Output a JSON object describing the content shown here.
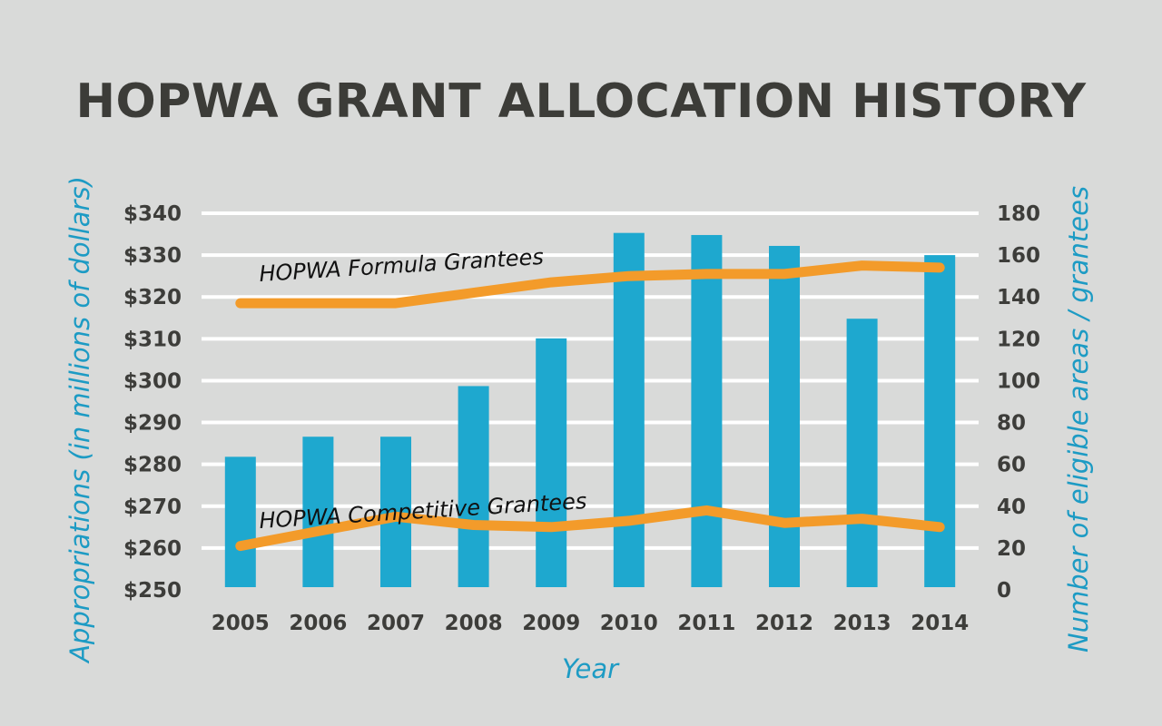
{
  "chart_data": {
    "type": "bar",
    "title": "HOPWA GRANT ALLOCATION HISTORY",
    "xlabel": "Year",
    "ylabel": "Appropriations (in millions of dollars)",
    "y2label": "Number of eligible areas / grantees",
    "categories": [
      "2005",
      "2006",
      "2007",
      "2008",
      "2009",
      "2010",
      "2011",
      "2012",
      "2013",
      "2014"
    ],
    "ylim": [
      250,
      340
    ],
    "yticks": [
      250,
      260,
      270,
      280,
      290,
      300,
      310,
      320,
      330,
      340
    ],
    "ytick_labels": [
      "$250",
      "$260",
      "$270",
      "$280",
      "$290",
      "$300",
      "$310",
      "$320",
      "$330",
      "$340"
    ],
    "y2lim": [
      0,
      180
    ],
    "y2ticks": [
      0,
      20,
      40,
      60,
      80,
      100,
      120,
      140,
      160,
      180
    ],
    "ytick_labels_right": [
      "0",
      "20",
      "40",
      "60",
      "80",
      "100",
      "120",
      "140",
      "160",
      "180"
    ],
    "grid": true,
    "bar_color": "#1ea8cf",
    "line_color": "#f39b2a",
    "bars": {
      "axis": "left",
      "values": [
        281.8,
        286.6,
        286.6,
        298.7,
        310.1,
        335.3,
        334.8,
        332.2,
        314.8,
        330.0
      ]
    },
    "series": [
      {
        "name": "HOPWA Formula Grantees",
        "axis": "right",
        "type": "line",
        "values": [
          137,
          137,
          137,
          142,
          147,
          150,
          151,
          151,
          155,
          154
        ]
      },
      {
        "name": "HOPWA Competitive Grantees",
        "axis": "right",
        "type": "line",
        "values": [
          21,
          28,
          35,
          31,
          30,
          33,
          38,
          32,
          34,
          30
        ]
      }
    ]
  }
}
